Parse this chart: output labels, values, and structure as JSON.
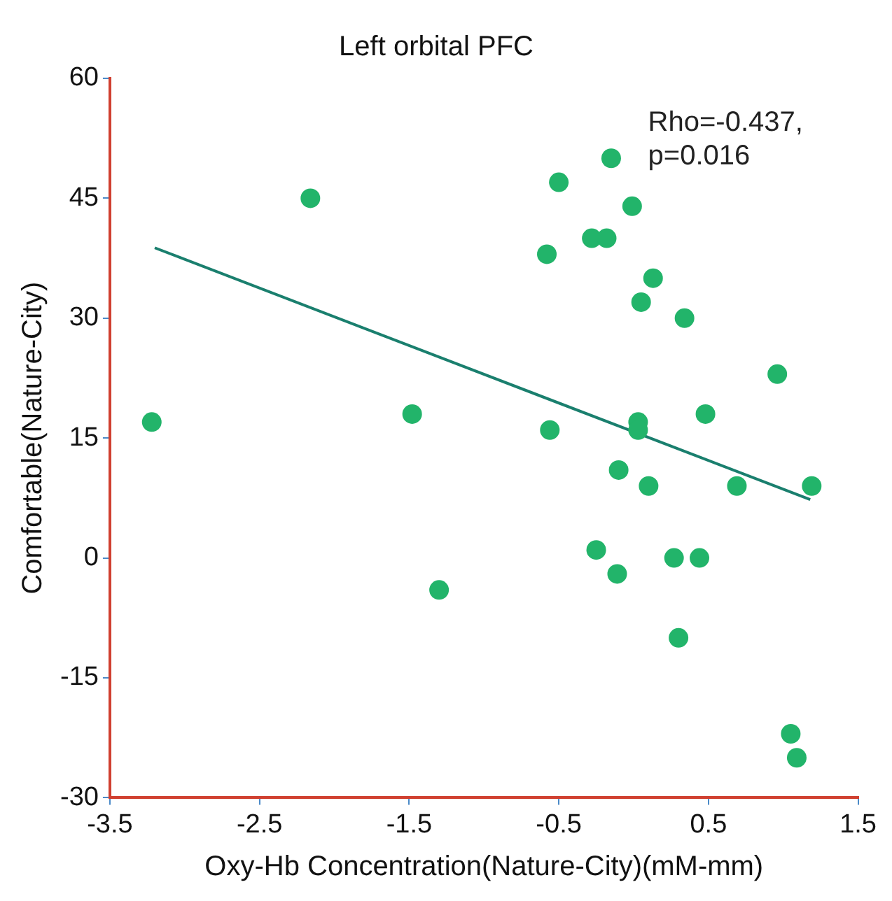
{
  "chart_data": {
    "type": "scatter",
    "title": "Left orbital PFC",
    "xlabel": "Oxy-Hb Concentration(Nature-City)(mM-mm)",
    "ylabel": "Comfortable(Nature-City)",
    "annotations": [
      "Rho=-0.437,",
      "p=0.016"
    ],
    "xlim": [
      -3.5,
      1.5
    ],
    "xticks": [
      -3.5,
      -2.5,
      -1.5,
      -0.5,
      0.5,
      1.5
    ],
    "ylim": [
      -30,
      60
    ],
    "yticks": [
      -30,
      -15,
      0,
      15,
      30,
      45,
      60
    ],
    "grid": false,
    "legend": false,
    "marker": "circle",
    "series": [
      {
        "type": "scatter",
        "color": "#22b46a",
        "x": [
          -2.16,
          -3.22,
          -1.48,
          -1.3,
          -0.15,
          -0.5,
          -0.01,
          -0.28,
          -0.18,
          -0.58,
          0.13,
          0.05,
          0.34,
          0.96,
          0.48,
          0.03,
          0.03,
          -0.56,
          -0.1,
          0.1,
          0.69,
          1.19,
          -0.25,
          -0.11,
          0.27,
          0.44,
          0.3,
          1.05,
          1.09
        ],
        "values": [
          45,
          17,
          18,
          -4,
          50,
          47,
          44,
          40,
          40,
          38,
          35,
          32,
          30,
          23,
          18,
          17,
          16,
          16,
          11,
          9,
          9,
          9,
          1,
          -2,
          0,
          0,
          -10,
          -22,
          -25
        ]
      },
      {
        "type": "line",
        "color": "#1a7f6e",
        "line_style": "solid",
        "marker": "none",
        "x": [
          -3.2,
          1.18
        ],
        "values": [
          38.8,
          7.3
        ]
      }
    ]
  }
}
